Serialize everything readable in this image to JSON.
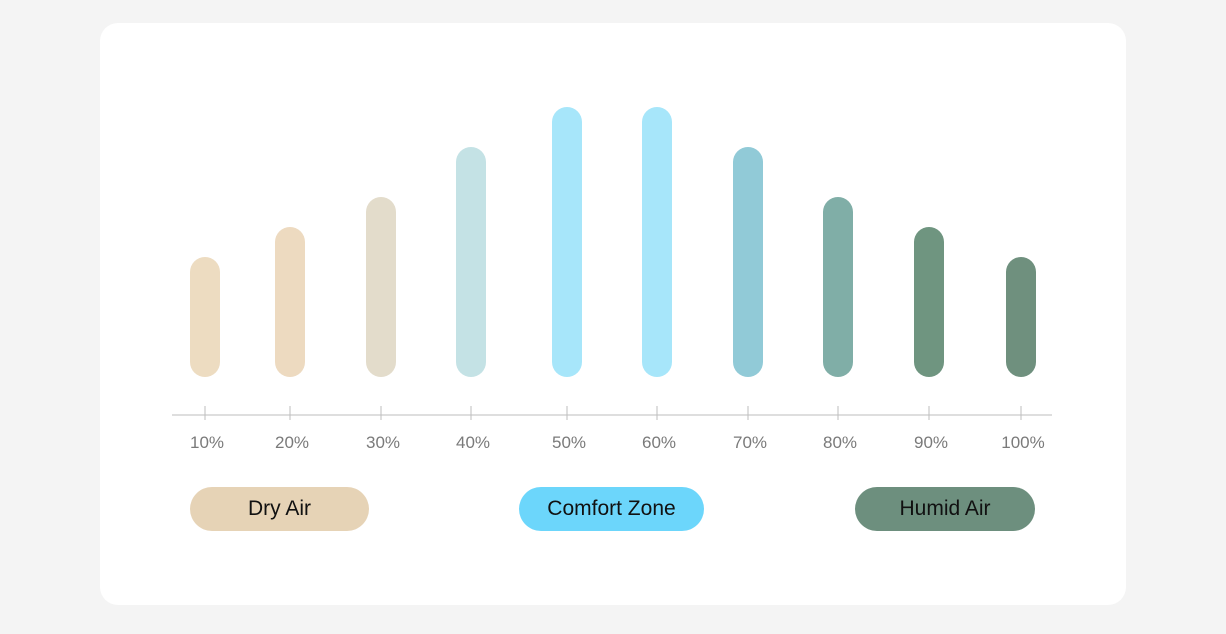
{
  "chart_data": {
    "type": "bar",
    "categories": [
      "10%",
      "20%",
      "30%",
      "40%",
      "50%",
      "60%",
      "70%",
      "80%",
      "90%",
      "100%"
    ],
    "values": [
      3,
      3.75,
      4.5,
      5.75,
      6.75,
      6.75,
      5.75,
      4.5,
      3.75,
      3
    ],
    "bar_colors": [
      "#EDDCC1",
      "#EDDAC0",
      "#E3DCCB",
      "#C4E2E5",
      "#A7E6FA",
      "#A7E6FA",
      "#91CAD7",
      "#80AEA7",
      "#6F9580",
      "#6F907E"
    ],
    "title": "",
    "xlabel": "",
    "ylabel": "",
    "ylim": [
      0,
      7
    ],
    "grid": false
  },
  "legend": [
    {
      "label": "Dry Air",
      "color": "#E6D3B6"
    },
    {
      "label": "Comfort Zone",
      "color": "#6CD6FB"
    },
    {
      "label": "Humid Air",
      "color": "#6D8F7E"
    }
  ],
  "colors": {
    "page_background": "#F4F4F4",
    "card_background": "#FFFFFF",
    "axis": "#BDBDBD",
    "tick_label": "#7A7A7A"
  }
}
